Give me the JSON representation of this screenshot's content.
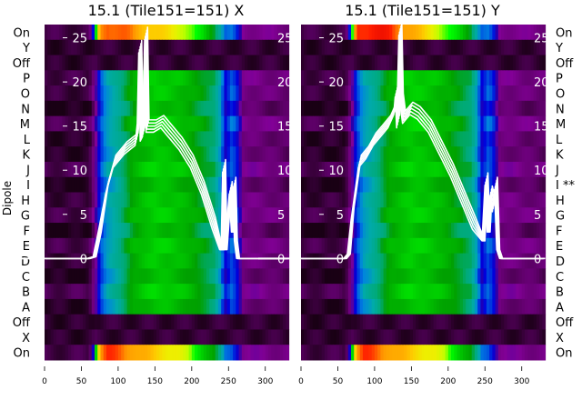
{
  "chart_data": [
    {
      "type": "heatmap",
      "title": "15.1 (Tile151=151) X",
      "ylabel": "Dipole",
      "row_labels": [
        "On",
        "Y",
        "Off",
        "P",
        "O",
        "N",
        "M",
        "L",
        "K",
        "J",
        "I",
        "H",
        "G",
        "F",
        "E",
        "D",
        "C",
        "B",
        "A",
        "Off",
        "X",
        "On"
      ],
      "row_profile": [
        "on",
        "off",
        "off",
        "beam",
        "beam",
        "beam",
        "beam",
        "beam",
        "beam",
        "beam",
        "beam",
        "beam",
        "beam",
        "beam",
        "beam",
        "beam",
        "beam",
        "beam",
        "beam",
        "off",
        "off",
        "on"
      ],
      "xlim": [
        0,
        330
      ],
      "xticks": [
        "0",
        "50",
        "100",
        "150",
        "200",
        "250",
        "300"
      ],
      "line_ylim": [
        -11.5,
        26.5
      ],
      "line_yticks": [
        "0",
        "5",
        "10",
        "15",
        "20",
        "25"
      ],
      "line_series": {
        "name": "X",
        "x": [
          0,
          60,
          68,
          75,
          85,
          95,
          110,
          125,
          128,
          130,
          132,
          135,
          138,
          140,
          150,
          160,
          170,
          185,
          200,
          215,
          230,
          240,
          242,
          244,
          246,
          250,
          253,
          256,
          258,
          260,
          263,
          330
        ],
        "y": [
          0,
          0,
          0.2,
          3,
          8,
          11,
          12.5,
          13.5,
          16,
          24,
          14,
          14.5,
          25.5,
          15,
          15,
          15.5,
          14.5,
          13,
          11,
          8,
          4,
          1,
          1,
          10.5,
          1,
          5,
          8,
          3,
          8.5,
          2,
          0,
          0
        ]
      }
    },
    {
      "type": "heatmap",
      "title": "15.1 (Tile151=151) Y",
      "row_labels": [
        "On",
        "Y",
        "Off",
        "P",
        "O",
        "N",
        "M",
        "L",
        "K",
        "J",
        "I **",
        "H",
        "G",
        "F",
        "E",
        "D",
        "C",
        "B",
        "A",
        "Off",
        "X",
        "On"
      ],
      "row_profile": [
        "onred",
        "off",
        "off",
        "beam",
        "beam",
        "beam",
        "beam",
        "beam",
        "beam",
        "beam",
        "beam",
        "beam",
        "beam",
        "beam",
        "beam",
        "beam",
        "beam",
        "beam",
        "beam",
        "off",
        "off",
        "on"
      ],
      "xlim": [
        0,
        330
      ],
      "xticks": [
        "0",
        "50",
        "100",
        "150",
        "200",
        "250",
        "300"
      ],
      "line_ylim": [
        -11.5,
        26.5
      ],
      "line_yticks": [
        "0",
        "5",
        "10",
        "15",
        "20",
        "25"
      ],
      "line_series": {
        "name": "Y",
        "x": [
          0,
          60,
          65,
          70,
          80,
          90,
          100,
          110,
          120,
          128,
          130,
          132,
          135,
          137,
          140,
          150,
          160,
          175,
          190,
          205,
          220,
          235,
          248,
          252,
          255,
          258,
          262,
          265,
          268,
          272,
          330
        ],
        "y": [
          0,
          0,
          0.5,
          5,
          11,
          12,
          13.5,
          14.5,
          15.5,
          17,
          19,
          15.5,
          26,
          18,
          16,
          17,
          16.5,
          15,
          12.5,
          10,
          7,
          4,
          2,
          9,
          3,
          7.5,
          6,
          8.5,
          1,
          0,
          0
        ]
      }
    }
  ],
  "profiles": {
    "x": [
      0,
      60,
      65,
      70,
      75,
      85,
      100,
      120,
      150,
      180,
      200,
      230,
      240,
      245,
      255,
      262,
      270,
      330
    ],
    "beam": [
      0.02,
      0.02,
      0.06,
      0.12,
      0.22,
      0.3,
      0.36,
      0.47,
      0.52,
      0.5,
      0.47,
      0.4,
      0.3,
      0.18,
      0.25,
      0.2,
      0.08,
      0.06
    ],
    "on": [
      0.03,
      0.03,
      0.1,
      0.55,
      0.8,
      0.84,
      0.82,
      0.8,
      0.74,
      0.7,
      0.62,
      0.45,
      0.35,
      0.25,
      0.25,
      0.2,
      0.1,
      0.08
    ],
    "onred": [
      0.03,
      0.03,
      0.1,
      0.6,
      0.85,
      0.86,
      0.86,
      0.85,
      0.78,
      0.7,
      0.6,
      0.45,
      0.33,
      0.25,
      0.25,
      0.2,
      0.1,
      0.08
    ],
    "off": [
      0.015,
      0.015,
      0.02,
      0.025,
      0.02,
      0.02,
      0.02,
      0.02,
      0.02,
      0.02,
      0.02,
      0.02,
      0.02,
      0.02,
      0.02,
      0.02,
      0.02,
      0.02
    ]
  }
}
